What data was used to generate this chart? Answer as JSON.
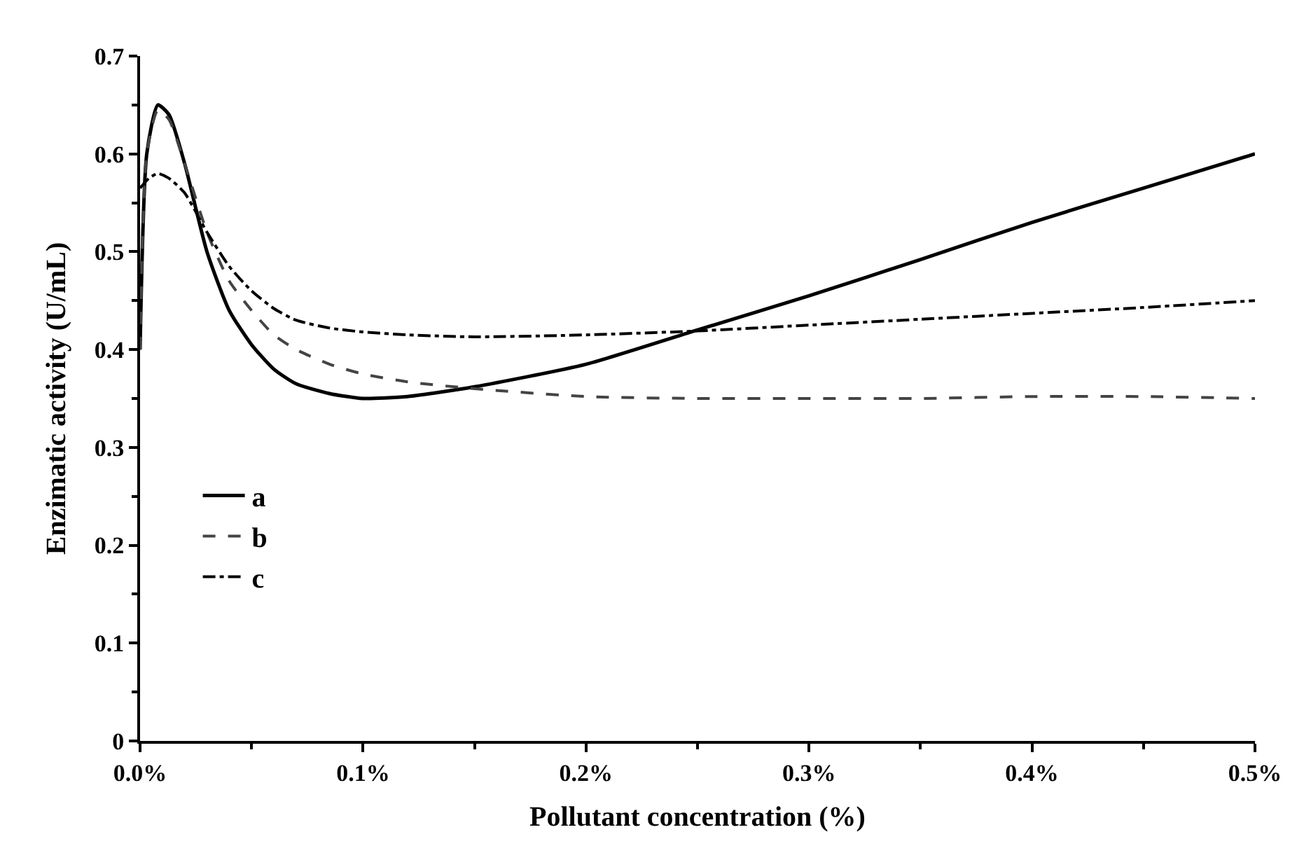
{
  "chart_data": {
    "type": "line",
    "xlabel": "Pollutant concentration (%)",
    "ylabel": "Enzimatic activity (U/mL)",
    "xlim": [
      0,
      0.5
    ],
    "ylim": [
      0,
      0.7
    ],
    "xticks": [
      {
        "value": 0,
        "label": "0.0%"
      },
      {
        "value": 0.1,
        "label": "0.1%"
      },
      {
        "value": 0.2,
        "label": "0.2%"
      },
      {
        "value": 0.3,
        "label": "0.3%"
      },
      {
        "value": 0.4,
        "label": "0.4%"
      },
      {
        "value": 0.5,
        "label": "0.5%"
      }
    ],
    "yticks": [
      0,
      0.1,
      0.2,
      0.3,
      0.4,
      0.5,
      0.6,
      0.7
    ],
    "legend": "bottom left",
    "marker": "none",
    "series": [
      {
        "name": "a",
        "color": "#000000",
        "line_style": "solid",
        "x": [
          0,
          0.003,
          0.008,
          0.013,
          0.02,
          0.03,
          0.04,
          0.05,
          0.06,
          0.07,
          0.085,
          0.1,
          0.12,
          0.15,
          0.2,
          0.25,
          0.3,
          0.35,
          0.4,
          0.45,
          0.5
        ],
        "values": [
          0.4,
          0.6,
          0.65,
          0.64,
          0.59,
          0.5,
          0.44,
          0.405,
          0.38,
          0.365,
          0.355,
          0.35,
          0.352,
          0.362,
          0.385,
          0.42,
          0.455,
          0.492,
          0.53,
          0.565,
          0.6
        ]
      },
      {
        "name": "b",
        "color": "#444444",
        "line_style": "dashed",
        "x": [
          0,
          0.003,
          0.008,
          0.013,
          0.02,
          0.03,
          0.04,
          0.05,
          0.06,
          0.07,
          0.085,
          0.1,
          0.12,
          0.15,
          0.2,
          0.25,
          0.3,
          0.35,
          0.4,
          0.45,
          0.5
        ],
        "values": [
          0.4,
          0.6,
          0.645,
          0.635,
          0.59,
          0.52,
          0.47,
          0.44,
          0.415,
          0.4,
          0.385,
          0.375,
          0.367,
          0.36,
          0.352,
          0.35,
          0.35,
          0.35,
          0.352,
          0.352,
          0.35
        ]
      },
      {
        "name": "c",
        "color": "#000000",
        "line_style": "dashdot",
        "x": [
          0,
          0.004,
          0.008,
          0.013,
          0.02,
          0.03,
          0.04,
          0.05,
          0.06,
          0.07,
          0.085,
          0.1,
          0.12,
          0.15,
          0.2,
          0.25,
          0.3,
          0.35,
          0.4,
          0.45,
          0.5
        ],
        "values": [
          0.565,
          0.575,
          0.58,
          0.575,
          0.56,
          0.52,
          0.485,
          0.46,
          0.442,
          0.43,
          0.422,
          0.418,
          0.415,
          0.413,
          0.415,
          0.419,
          0.425,
          0.431,
          0.437,
          0.443,
          0.45
        ]
      }
    ]
  }
}
